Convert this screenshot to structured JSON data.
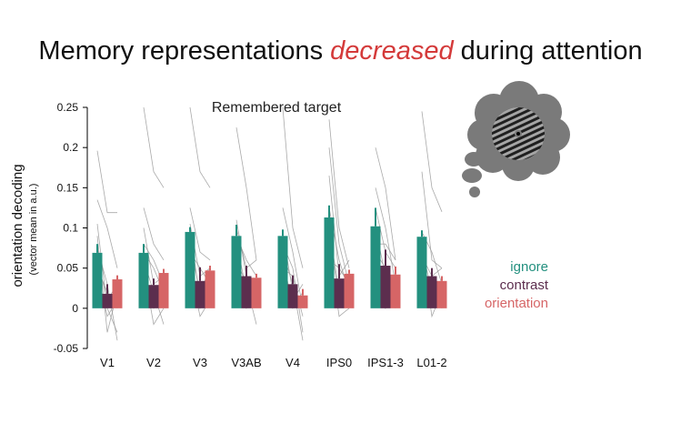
{
  "title": {
    "before": "Memory representations ",
    "emphasis": "decreased",
    "after": " during attention",
    "emphasis_color": "#d43a3a"
  },
  "thought_bubble_icon": "thought-bubble-with-grating-icon",
  "chart_data": {
    "type": "bar",
    "title": "Remembered target",
    "ylabel": "orientation decoding",
    "ylabel_sub": "(vector mean in a.u.)",
    "xlabel": "",
    "ylim": [
      -0.05,
      0.25
    ],
    "yticks": [
      -0.05,
      0,
      0.05,
      0.1,
      0.15,
      0.2,
      0.25
    ],
    "ytick_labels": [
      "-0.05",
      "0",
      "0.05",
      "0.1",
      "0.15",
      "0.2",
      "0.25"
    ],
    "grid": false,
    "legend_position": "right",
    "categories": [
      "V1",
      "V2",
      "V3",
      "V3AB",
      "V4",
      "IPS0",
      "IPS1-3",
      "L01-2"
    ],
    "series": [
      {
        "name": "ignore",
        "color": "#23907f",
        "values": [
          0.069,
          0.069,
          0.095,
          0.09,
          0.09,
          0.113,
          0.102,
          0.089
        ],
        "errors": [
          0.011,
          0.011,
          0.006,
          0.014,
          0.008,
          0.015,
          0.023,
          0.008
        ]
      },
      {
        "name": "contrast",
        "color": "#5c2e4e",
        "values": [
          0.018,
          0.029,
          0.034,
          0.04,
          0.03,
          0.037,
          0.053,
          0.04
        ],
        "errors": [
          0.012,
          0.008,
          0.017,
          0.013,
          0.011,
          0.018,
          0.02,
          0.01
        ]
      },
      {
        "name": "orientation",
        "color": "#d66566",
        "values": [
          0.036,
          0.044,
          0.047,
          0.038,
          0.016,
          0.043,
          0.042,
          0.034
        ],
        "errors": [
          0.005,
          0.005,
          0.006,
          0.005,
          0.008,
          0.005,
          0.01,
          0.006
        ]
      }
    ],
    "subject_lines": [
      [
        [
          0.196,
          0.119,
          0.119
        ],
        [
          0.135,
          0.1,
          0.05
        ],
        [
          0.105,
          0.0,
          -0.03
        ],
        [
          0.09,
          -0.03,
          0.02
        ],
        [
          0.075,
          0.03,
          -0.04
        ],
        [
          0.06,
          0.01,
          0.03
        ],
        [
          0.045,
          -0.01,
          0.01
        ],
        [
          0.05,
          0.02,
          0.0
        ]
      ],
      [
        [
          0.25,
          0.17,
          0.15
        ],
        [
          0.125,
          0.08,
          0.06
        ],
        [
          0.1,
          0.03,
          0.04
        ],
        [
          0.07,
          0.05,
          0.02
        ],
        [
          0.06,
          0.02,
          -0.02
        ],
        [
          0.05,
          -0.02,
          0.0
        ],
        [
          0.04,
          0.0,
          0.01
        ],
        [
          0.08,
          0.06,
          0.03
        ]
      ],
      [
        [
          0.25,
          0.17,
          0.15
        ],
        [
          0.125,
          0.07,
          0.06
        ],
        [
          0.105,
          0.04,
          0.05
        ],
        [
          0.08,
          0.02,
          0.05
        ],
        [
          0.07,
          0.05,
          0.03
        ],
        [
          0.1,
          0.01,
          0.03
        ],
        [
          0.06,
          0.0,
          0.02
        ],
        [
          0.05,
          -0.01,
          0.01
        ]
      ],
      [
        [
          0.225,
          0.15,
          0.06
        ],
        [
          0.11,
          0.04,
          0.03
        ],
        [
          0.09,
          0.06,
          0.04
        ],
        [
          0.075,
          0.0,
          0.02
        ],
        [
          0.06,
          0.03,
          -0.02
        ],
        [
          0.05,
          0.02,
          0.03
        ],
        [
          0.1,
          0.05,
          0.06
        ],
        [
          0.085,
          0.02,
          0.03
        ]
      ],
      [
        [
          0.25,
          0.1,
          0.05
        ],
        [
          0.125,
          0.07,
          0.0
        ],
        [
          0.095,
          0.02,
          0.01
        ],
        [
          0.08,
          0.05,
          -0.03
        ],
        [
          0.065,
          0.0,
          0.02
        ],
        [
          0.05,
          0.04,
          -0.01
        ],
        [
          0.045,
          0.01,
          0.03
        ],
        [
          0.07,
          0.03,
          -0.04
        ]
      ],
      [
        [
          0.235,
          0.1,
          0.05
        ],
        [
          0.2,
          0.08,
          0.03
        ],
        [
          0.165,
          0.04,
          0.06
        ],
        [
          0.125,
          0.06,
          0.02
        ],
        [
          0.1,
          0.02,
          0.04
        ],
        [
          0.08,
          -0.01,
          0.0
        ],
        [
          0.06,
          0.05,
          0.03
        ],
        [
          0.095,
          0.01,
          0.02
        ]
      ],
      [
        [
          0.2,
          0.15,
          0.06
        ],
        [
          0.15,
          0.1,
          0.03
        ],
        [
          0.125,
          0.07,
          0.05
        ],
        [
          0.1,
          0.04,
          0.01
        ],
        [
          0.08,
          0.08,
          0.06
        ],
        [
          0.06,
          0.02,
          0.0
        ],
        [
          0.09,
          0.0,
          0.03
        ],
        [
          0.07,
          0.05,
          0.02
        ]
      ],
      [
        [
          0.245,
          0.15,
          0.12
        ],
        [
          0.17,
          0.06,
          0.05
        ],
        [
          0.095,
          0.07,
          0.03
        ],
        [
          0.075,
          0.02,
          0.0
        ],
        [
          0.065,
          0.04,
          0.05
        ],
        [
          0.05,
          0.01,
          0.02
        ],
        [
          0.045,
          0.03,
          0.01
        ],
        [
          0.08,
          -0.01,
          0.02
        ]
      ]
    ]
  }
}
